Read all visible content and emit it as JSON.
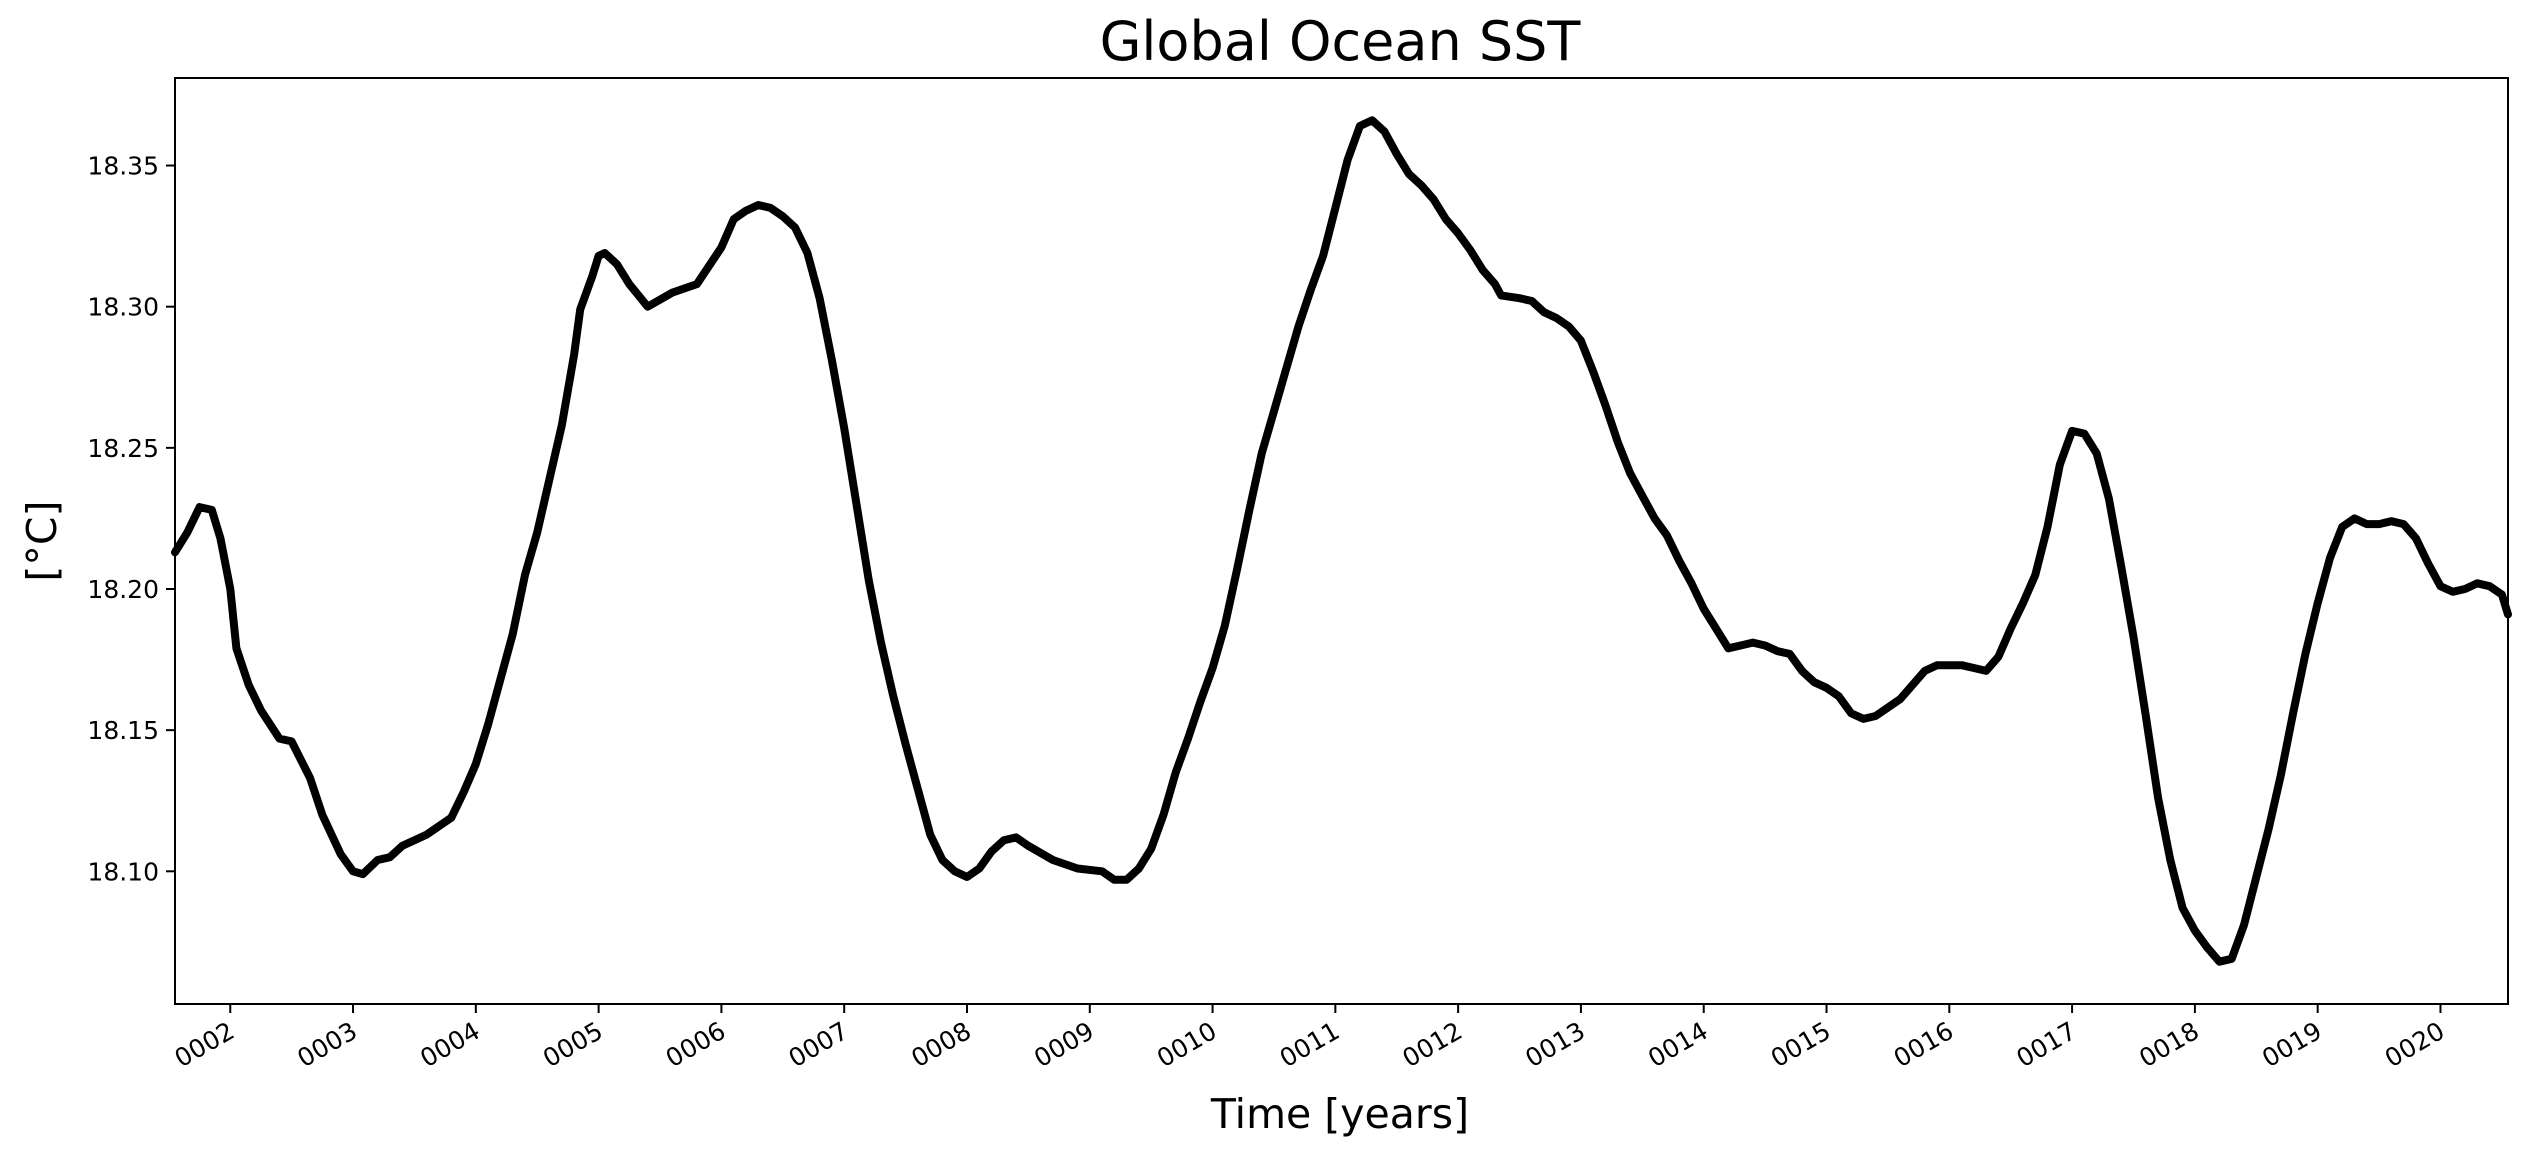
{
  "chart_data": {
    "type": "line",
    "title": "Global Ocean SST",
    "xlabel": "Time [years]",
    "ylabel": "[°C]",
    "xlim": [
      1.55,
      20.55
    ],
    "ylim": [
      18.053,
      18.381
    ],
    "grid": false,
    "legend": "none",
    "line_color": "#000000",
    "x_ticks": [
      {
        "value": 2,
        "label": "0002"
      },
      {
        "value": 3,
        "label": "0003"
      },
      {
        "value": 4,
        "label": "0004"
      },
      {
        "value": 5,
        "label": "0005"
      },
      {
        "value": 6,
        "label": "0006"
      },
      {
        "value": 7,
        "label": "0007"
      },
      {
        "value": 8,
        "label": "0008"
      },
      {
        "value": 9,
        "label": "0009"
      },
      {
        "value": 10,
        "label": "0010"
      },
      {
        "value": 11,
        "label": "0011"
      },
      {
        "value": 12,
        "label": "0012"
      },
      {
        "value": 13,
        "label": "0013"
      },
      {
        "value": 14,
        "label": "0014"
      },
      {
        "value": 15,
        "label": "0015"
      },
      {
        "value": 16,
        "label": "0016"
      },
      {
        "value": 17,
        "label": "0017"
      },
      {
        "value": 18,
        "label": "0018"
      },
      {
        "value": 19,
        "label": "0019"
      },
      {
        "value": 20,
        "label": "0020"
      }
    ],
    "y_ticks": [
      {
        "value": 18.1,
        "label": "18.10"
      },
      {
        "value": 18.15,
        "label": "18.15"
      },
      {
        "value": 18.2,
        "label": "18.20"
      },
      {
        "value": 18.25,
        "label": "18.25"
      },
      {
        "value": 18.3,
        "label": "18.30"
      },
      {
        "value": 18.35,
        "label": "18.35"
      }
    ],
    "series": [
      {
        "points": [
          [
            1.55,
            18.213
          ],
          [
            1.65,
            18.22
          ],
          [
            1.75,
            18.229
          ],
          [
            1.85,
            18.228
          ],
          [
            1.92,
            18.218
          ],
          [
            2.0,
            18.2
          ],
          [
            2.05,
            18.179
          ],
          [
            2.15,
            18.166
          ],
          [
            2.25,
            18.157
          ],
          [
            2.4,
            18.147
          ],
          [
            2.5,
            18.146
          ],
          [
            2.65,
            18.133
          ],
          [
            2.75,
            18.12
          ],
          [
            2.9,
            18.106
          ],
          [
            3.0,
            18.1
          ],
          [
            3.08,
            18.099
          ],
          [
            3.2,
            18.104
          ],
          [
            3.3,
            18.105
          ],
          [
            3.4,
            18.109
          ],
          [
            3.6,
            18.113
          ],
          [
            3.8,
            18.119
          ],
          [
            3.9,
            18.128
          ],
          [
            4.0,
            18.138
          ],
          [
            4.1,
            18.152
          ],
          [
            4.2,
            18.168
          ],
          [
            4.3,
            18.184
          ],
          [
            4.4,
            18.205
          ],
          [
            4.5,
            18.22
          ],
          [
            4.6,
            18.239
          ],
          [
            4.7,
            18.258
          ],
          [
            4.8,
            18.283
          ],
          [
            4.85,
            18.299
          ],
          [
            4.95,
            18.311
          ],
          [
            5.0,
            18.318
          ],
          [
            5.05,
            18.319
          ],
          [
            5.15,
            18.315
          ],
          [
            5.25,
            18.308
          ],
          [
            5.4,
            18.3
          ],
          [
            5.6,
            18.305
          ],
          [
            5.8,
            18.308
          ],
          [
            6.0,
            18.321
          ],
          [
            6.1,
            18.331
          ],
          [
            6.2,
            18.334
          ],
          [
            6.3,
            18.336
          ],
          [
            6.4,
            18.335
          ],
          [
            6.5,
            18.332
          ],
          [
            6.6,
            18.328
          ],
          [
            6.7,
            18.319
          ],
          [
            6.8,
            18.303
          ],
          [
            6.9,
            18.281
          ],
          [
            7.0,
            18.257
          ],
          [
            7.1,
            18.23
          ],
          [
            7.2,
            18.203
          ],
          [
            7.3,
            18.181
          ],
          [
            7.4,
            18.162
          ],
          [
            7.5,
            18.145
          ],
          [
            7.6,
            18.129
          ],
          [
            7.7,
            18.113
          ],
          [
            7.8,
            18.104
          ],
          [
            7.9,
            18.1
          ],
          [
            8.0,
            18.098
          ],
          [
            8.1,
            18.101
          ],
          [
            8.2,
            18.107
          ],
          [
            8.3,
            18.111
          ],
          [
            8.4,
            18.112
          ],
          [
            8.5,
            18.109
          ],
          [
            8.7,
            18.104
          ],
          [
            8.9,
            18.101
          ],
          [
            9.1,
            18.1
          ],
          [
            9.2,
            18.097
          ],
          [
            9.3,
            18.097
          ],
          [
            9.4,
            18.101
          ],
          [
            9.5,
            18.108
          ],
          [
            9.6,
            18.12
          ],
          [
            9.7,
            18.135
          ],
          [
            9.8,
            18.147
          ],
          [
            9.9,
            18.16
          ],
          [
            10.0,
            18.172
          ],
          [
            10.1,
            18.187
          ],
          [
            10.2,
            18.207
          ],
          [
            10.3,
            18.228
          ],
          [
            10.4,
            18.248
          ],
          [
            10.5,
            18.263
          ],
          [
            10.6,
            18.278
          ],
          [
            10.7,
            18.293
          ],
          [
            10.8,
            18.306
          ],
          [
            10.9,
            18.318
          ],
          [
            11.0,
            18.335
          ],
          [
            11.1,
            18.352
          ],
          [
            11.2,
            18.364
          ],
          [
            11.3,
            18.366
          ],
          [
            11.4,
            18.362
          ],
          [
            11.5,
            18.354
          ],
          [
            11.6,
            18.347
          ],
          [
            11.7,
            18.343
          ],
          [
            11.8,
            18.338
          ],
          [
            11.9,
            18.331
          ],
          [
            12.0,
            18.326
          ],
          [
            12.1,
            18.32
          ],
          [
            12.2,
            18.313
          ],
          [
            12.3,
            18.308
          ],
          [
            12.35,
            18.304
          ],
          [
            12.5,
            18.303
          ],
          [
            12.6,
            18.302
          ],
          [
            12.7,
            18.298
          ],
          [
            12.8,
            18.296
          ],
          [
            12.9,
            18.293
          ],
          [
            13.0,
            18.288
          ],
          [
            13.1,
            18.277
          ],
          [
            13.2,
            18.265
          ],
          [
            13.3,
            18.252
          ],
          [
            13.4,
            18.241
          ],
          [
            13.5,
            18.233
          ],
          [
            13.6,
            18.225
          ],
          [
            13.7,
            18.219
          ],
          [
            13.8,
            18.21
          ],
          [
            13.9,
            18.202
          ],
          [
            14.0,
            18.193
          ],
          [
            14.1,
            18.186
          ],
          [
            14.2,
            18.179
          ],
          [
            14.3,
            18.18
          ],
          [
            14.4,
            18.181
          ],
          [
            14.5,
            18.18
          ],
          [
            14.6,
            18.178
          ],
          [
            14.7,
            18.177
          ],
          [
            14.8,
            18.171
          ],
          [
            14.9,
            18.167
          ],
          [
            15.0,
            18.165
          ],
          [
            15.1,
            18.162
          ],
          [
            15.2,
            18.156
          ],
          [
            15.3,
            18.154
          ],
          [
            15.4,
            18.155
          ],
          [
            15.5,
            18.158
          ],
          [
            15.6,
            18.161
          ],
          [
            15.7,
            18.166
          ],
          [
            15.8,
            18.171
          ],
          [
            15.9,
            18.173
          ],
          [
            16.0,
            18.173
          ],
          [
            16.1,
            18.173
          ],
          [
            16.2,
            18.172
          ],
          [
            16.3,
            18.171
          ],
          [
            16.4,
            18.176
          ],
          [
            16.5,
            18.186
          ],
          [
            16.6,
            18.195
          ],
          [
            16.7,
            18.205
          ],
          [
            16.8,
            18.222
          ],
          [
            16.9,
            18.244
          ],
          [
            17.0,
            18.256
          ],
          [
            17.1,
            18.255
          ],
          [
            17.2,
            18.248
          ],
          [
            17.3,
            18.232
          ],
          [
            17.4,
            18.208
          ],
          [
            17.5,
            18.183
          ],
          [
            17.6,
            18.155
          ],
          [
            17.7,
            18.126
          ],
          [
            17.8,
            18.104
          ],
          [
            17.9,
            18.087
          ],
          [
            18.0,
            18.079
          ],
          [
            18.1,
            18.073
          ],
          [
            18.2,
            18.068
          ],
          [
            18.3,
            18.069
          ],
          [
            18.4,
            18.081
          ],
          [
            18.5,
            18.098
          ],
          [
            18.6,
            18.115
          ],
          [
            18.7,
            18.134
          ],
          [
            18.8,
            18.156
          ],
          [
            18.9,
            18.177
          ],
          [
            19.0,
            18.195
          ],
          [
            19.1,
            18.211
          ],
          [
            19.2,
            18.222
          ],
          [
            19.3,
            18.225
          ],
          [
            19.4,
            18.223
          ],
          [
            19.5,
            18.223
          ],
          [
            19.6,
            18.224
          ],
          [
            19.7,
            18.223
          ],
          [
            19.8,
            18.218
          ],
          [
            19.9,
            18.209
          ],
          [
            20.0,
            18.201
          ],
          [
            20.1,
            18.199
          ],
          [
            20.2,
            18.2
          ],
          [
            20.3,
            18.202
          ],
          [
            20.4,
            18.201
          ],
          [
            20.5,
            18.198
          ],
          [
            20.55,
            18.191
          ]
        ]
      }
    ]
  }
}
